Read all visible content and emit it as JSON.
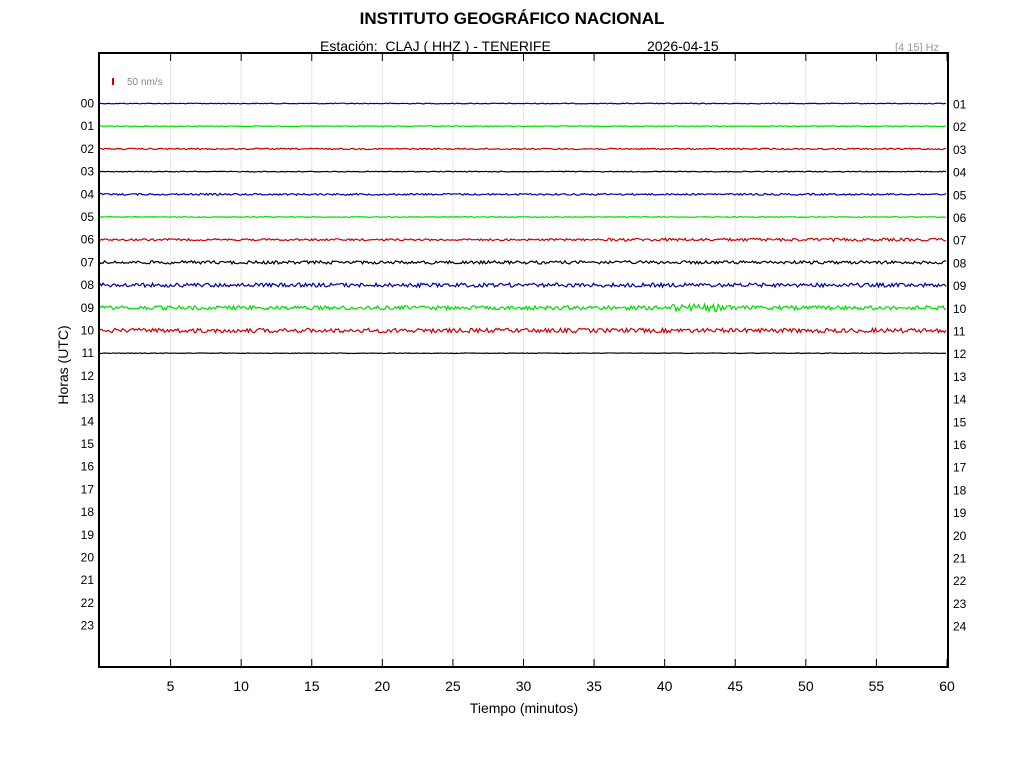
{
  "header": {
    "title": "INSTITUTO GEOGRÁFICO NACIONAL",
    "station": "Estación:  CLAJ ( HHZ ) - TENERIFE",
    "date": "2026-04-15",
    "band": "[4 15] Hz"
  },
  "chart_data": {
    "type": "line",
    "xlabel": "Tiempo (minutos)",
    "ylabel": "Horas (UTC)",
    "xlim": [
      0,
      60
    ],
    "x_ticks": [
      5,
      10,
      15,
      20,
      25,
      30,
      35,
      40,
      45,
      50,
      55,
      60
    ],
    "left_hour_labels": [
      "00",
      "01",
      "02",
      "03",
      "04",
      "05",
      "06",
      "07",
      "08",
      "09",
      "10",
      "11",
      "12",
      "13",
      "14",
      "15",
      "16",
      "17",
      "18",
      "19",
      "20",
      "21",
      "22",
      "23"
    ],
    "right_hour_labels": [
      "01",
      "02",
      "03",
      "04",
      "05",
      "06",
      "07",
      "08",
      "09",
      "10",
      "11",
      "12",
      "13",
      "14",
      "15",
      "16",
      "17",
      "18",
      "19",
      "20",
      "21",
      "22",
      "23",
      "24"
    ],
    "scale_bar": "50 nm/s",
    "series_colors": [
      "#0000aa",
      "#00dd00",
      "#cc0000",
      "#000000"
    ],
    "series": [
      {
        "hour": "00",
        "x_end": 60,
        "noise": 0.4
      },
      {
        "hour": "01",
        "x_end": 60,
        "noise": 0.4
      },
      {
        "hour": "02",
        "x_end": 60,
        "noise": 0.7
      },
      {
        "hour": "03",
        "x_end": 60,
        "noise": 0.4
      },
      {
        "hour": "04",
        "x_end": 60,
        "noise": 0.9
      },
      {
        "hour": "05",
        "x_end": 60,
        "noise": 0.4
      },
      {
        "hour": "06",
        "x_end": 60,
        "noise": 1.0
      },
      {
        "hour": "07",
        "x_end": 60,
        "noise": 1.6
      },
      {
        "hour": "08",
        "x_end": 60,
        "noise": 2.0
      },
      {
        "hour": "09",
        "x_end": 60,
        "noise": 2.0
      },
      {
        "hour": "10",
        "x_end": 60,
        "noise": 2.2
      },
      {
        "hour": "11",
        "x_end": 60,
        "noise": 0.3
      }
    ],
    "grid": true
  }
}
